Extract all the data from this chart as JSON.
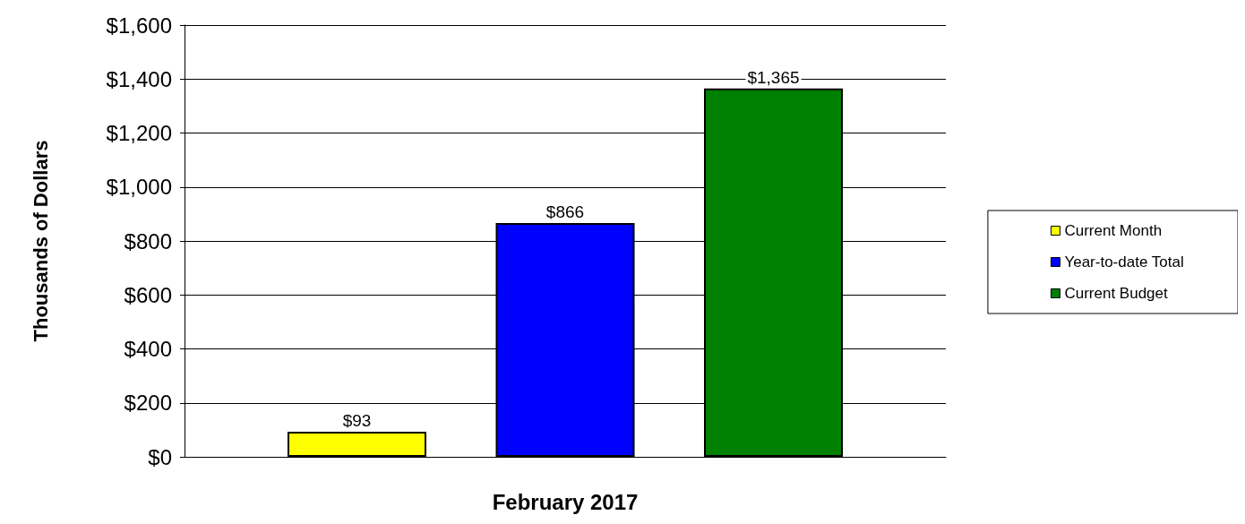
{
  "chart_data": {
    "type": "bar",
    "xlabel": "February 2017",
    "ylabel": "Thousands of Dollars",
    "categories": [
      null
    ],
    "series": [
      {
        "name": "Current Month",
        "color": "#ffff00",
        "values": [
          93
        ],
        "value_labels": [
          "$93"
        ]
      },
      {
        "name": "Year-to-date Total",
        "color": "#0000ff",
        "values": [
          866
        ],
        "value_labels": [
          "$866"
        ]
      },
      {
        "name": "Current Budget",
        "color": "#008000",
        "values": [
          1365
        ],
        "value_labels": [
          "$1,365"
        ]
      }
    ],
    "ylim": [
      0,
      1600
    ],
    "yticks": [
      {
        "value": 0,
        "label": "$0"
      },
      {
        "value": 200,
        "label": "$200"
      },
      {
        "value": 400,
        "label": "$400"
      },
      {
        "value": 600,
        "label": "$600"
      },
      {
        "value": 800,
        "label": "$800"
      },
      {
        "value": 1000,
        "label": "$1,000"
      },
      {
        "value": 1200,
        "label": "$1,200"
      },
      {
        "value": 1400,
        "label": "$1,400"
      },
      {
        "value": 1600,
        "label": "$1,600"
      }
    ],
    "grid": "y",
    "legend": "right"
  }
}
